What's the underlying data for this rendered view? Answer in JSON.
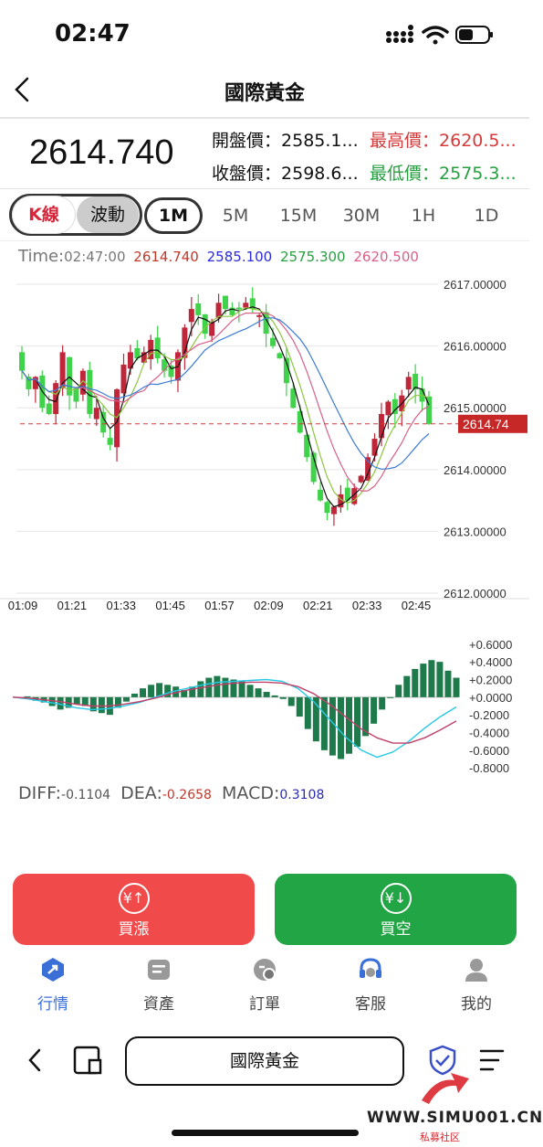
{
  "status_bar": {
    "time": "02:47"
  },
  "header": {
    "title": "國際黃金"
  },
  "quote": {
    "price": "2614.740",
    "open_label": "開盤價：",
    "open_value": "2585.1...",
    "high_label": "最高價：",
    "high_value": "2620.5...",
    "close_label": "收盤價：",
    "close_value": "2598.6...",
    "low_label": "最低價：",
    "low_value": "2575.3..."
  },
  "chart_mode": {
    "kline": "K線",
    "wave": "波動"
  },
  "timeframes": [
    "1M",
    "5M",
    "15M",
    "30M",
    "1H",
    "1D"
  ],
  "active_timeframe": "1M",
  "legend": {
    "time_label": "Time:",
    "time_value": "02:47:00",
    "v1": "2614.740",
    "v2": "2585.100",
    "v3": "2575.300",
    "v4": "2620.500"
  },
  "current_price_tag": "2614.74",
  "colors": {
    "up": "#d63a3a",
    "down": "#25a040",
    "blue": "#2a2ae0",
    "pink": "#d8608a",
    "accent": "#3b6fd8"
  },
  "chart_data": [
    {
      "type": "candlestick",
      "x_ticks": [
        "01:09",
        "01:21",
        "01:33",
        "01:45",
        "01:57",
        "02:09",
        "02:21",
        "02:33",
        "02:45"
      ],
      "y_ticks": [
        "2617.00000",
        "2616.00000",
        "2615.00000",
        "2614.00000",
        "2613.00000",
        "2612.00000"
      ],
      "ylim": [
        2612,
        2617.4
      ],
      "current_price": 2614.74,
      "close_approx": [
        2615.6,
        2615.3,
        2615.5,
        2615.0,
        2614.9,
        2615.4,
        2615.9,
        2615.2,
        2615.1,
        2615.6,
        2614.9,
        2615.0,
        2614.6,
        2614.4,
        2615.3,
        2615.7,
        2615.9,
        2615.8,
        2615.9,
        2616.1,
        2615.8,
        2615.6,
        2615.5,
        2615.9,
        2616.3,
        2616.6,
        2616.5,
        2616.2,
        2616.4,
        2616.7,
        2616.6,
        2616.5,
        2616.6,
        2616.7,
        2616.6,
        2616.5,
        2616.2,
        2616.0,
        2615.8,
        2615.4,
        2615.0,
        2614.6,
        2614.2,
        2613.8,
        2613.5,
        2613.3,
        2613.4,
        2613.6,
        2613.5,
        2613.7,
        2613.9,
        2614.2,
        2614.5,
        2614.9,
        2615.1,
        2614.9,
        2615.2,
        2615.5,
        2615.3,
        2615.1,
        2614.74
      ],
      "series": [
        {
          "name": "",
          "color": "#111111"
        },
        {
          "name": "",
          "color": "#8cc63f"
        },
        {
          "name": "",
          "color": "#d8608a"
        },
        {
          "name": "",
          "color": "#3a7bd5"
        }
      ]
    },
    {
      "type": "bar",
      "y_ticks": [
        "+0.6000",
        "+0.4000",
        "+0.2000",
        "+0.0000",
        "-0.2000",
        "-0.4000",
        "-0.6000",
        "-0.8000"
      ],
      "ylim": [
        -0.85,
        0.65
      ],
      "macd_bars": [
        0.01,
        -0.04,
        -0.06,
        -0.1,
        -0.14,
        -0.12,
        -0.08,
        -0.1,
        -0.16,
        -0.18,
        -0.2,
        -0.12,
        -0.05,
        0.04,
        0.1,
        0.14,
        0.16,
        0.14,
        0.12,
        0.08,
        0.12,
        0.18,
        0.22,
        0.24,
        0.22,
        0.2,
        0.18,
        0.14,
        0.1,
        0.06,
        0.02,
        -0.02,
        -0.1,
        -0.22,
        -0.36,
        -0.5,
        -0.6,
        -0.66,
        -0.7,
        -0.64,
        -0.56,
        -0.44,
        -0.3,
        -0.14,
        0.0,
        0.14,
        0.24,
        0.32,
        0.38,
        0.42,
        0.4,
        0.3,
        0.22
      ],
      "diff_line": [
        0.0,
        -0.02,
        -0.05,
        -0.08,
        -0.12,
        -0.14,
        -0.13,
        -0.1,
        -0.06,
        0.0,
        0.06,
        0.1,
        0.14,
        0.17,
        0.18,
        0.19,
        0.2,
        0.18,
        0.1,
        -0.05,
        -0.25,
        -0.45,
        -0.6,
        -0.68,
        -0.62,
        -0.5,
        -0.35,
        -0.22,
        -0.11
      ],
      "dea_line": [
        0.0,
        -0.01,
        -0.03,
        -0.05,
        -0.08,
        -0.1,
        -0.1,
        -0.08,
        -0.05,
        -0.01,
        0.04,
        0.08,
        0.11,
        0.14,
        0.16,
        0.17,
        0.17,
        0.16,
        0.12,
        0.04,
        -0.08,
        -0.22,
        -0.36,
        -0.46,
        -0.52,
        -0.52,
        -0.46,
        -0.37,
        -0.27
      ]
    }
  ],
  "indicator": {
    "diff_label": "DIFF:",
    "diff_value": "-0.1104",
    "dea_label": "DEA:",
    "dea_value": "-0.2658",
    "macd_label": "MACD:",
    "macd_value": "0.3108"
  },
  "actions": {
    "buy_up": "買漲",
    "buy_down": "買空"
  },
  "tabbar": [
    {
      "label": "行情",
      "icon": "trend-icon"
    },
    {
      "label": "資產",
      "icon": "wallet-icon"
    },
    {
      "label": "訂單",
      "icon": "order-icon"
    },
    {
      "label": "客服",
      "icon": "headset-icon"
    },
    {
      "label": "我的",
      "icon": "user-icon"
    }
  ],
  "browser": {
    "address": "國際黃金"
  },
  "watermark": {
    "site": "WWW.SIMU001.CN",
    "sub": "私募社区"
  }
}
